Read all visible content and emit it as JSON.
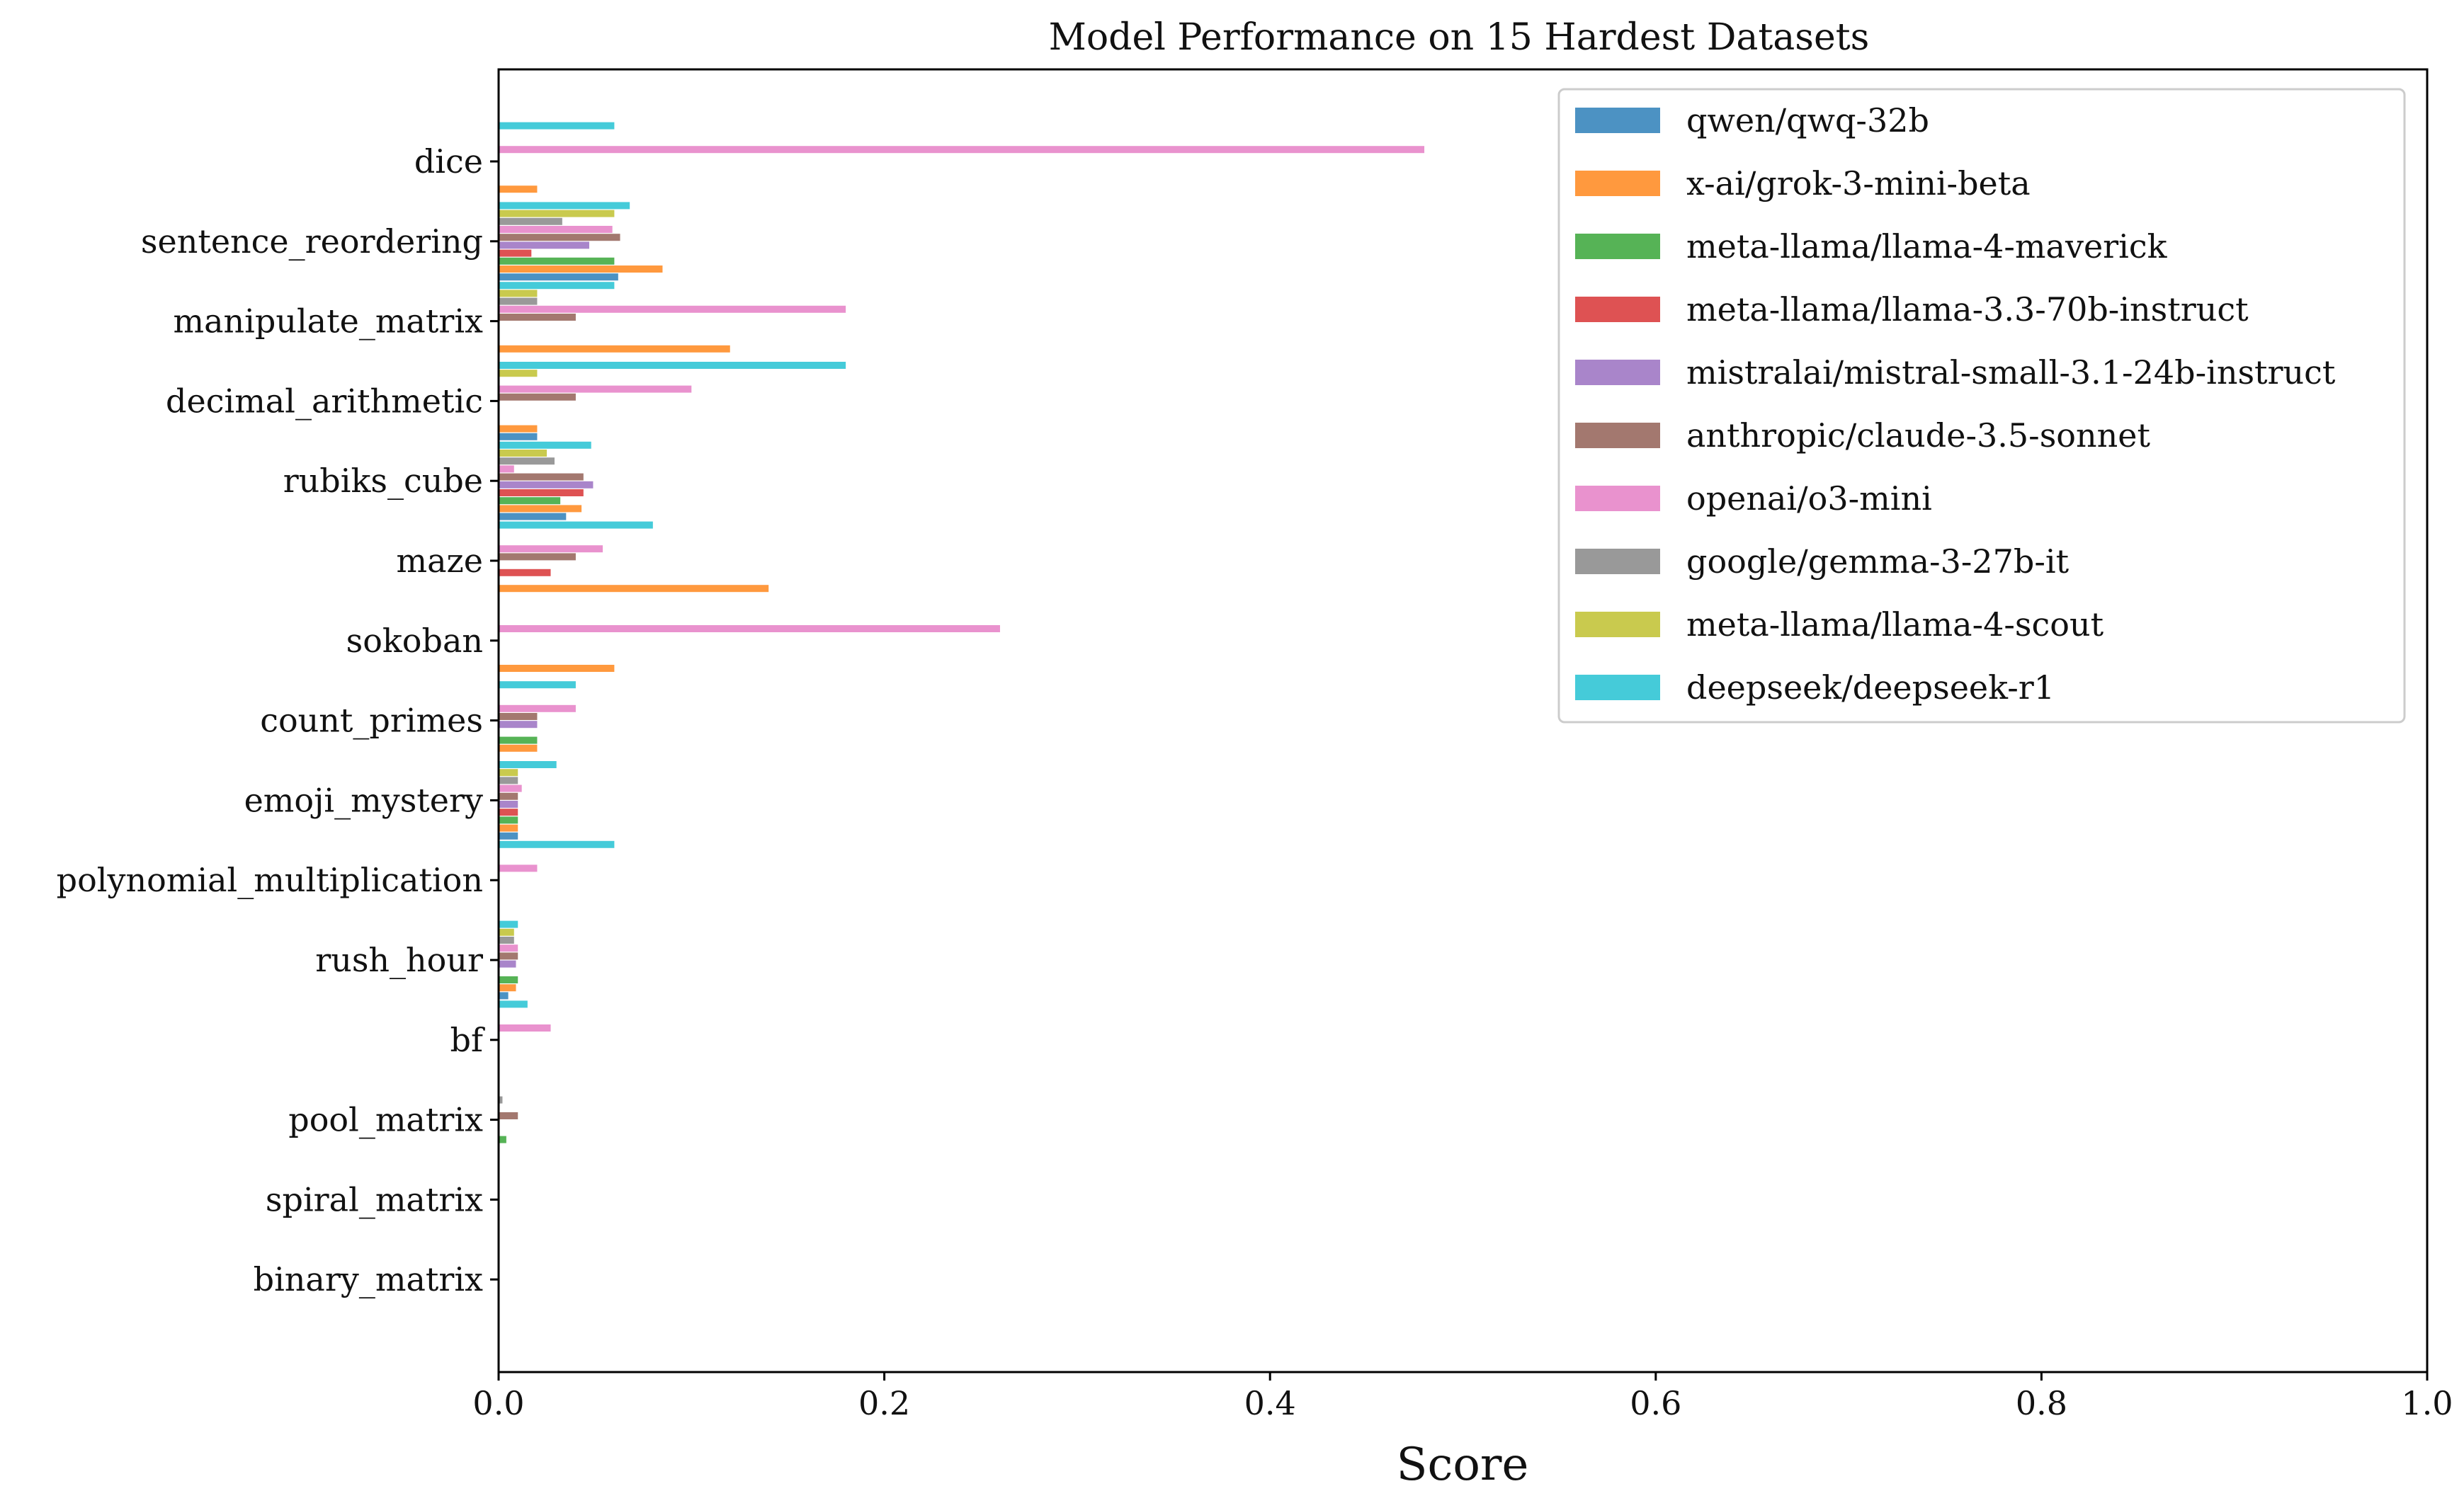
{
  "chart_data": {
    "type": "bar",
    "orientation": "horizontal",
    "title": "Model Performance on 15 Hardest Datasets",
    "xlabel": "Score",
    "ylabel": "",
    "xlim": [
      0,
      1.0
    ],
    "xticks": [
      "0.0",
      "0.2",
      "0.4",
      "0.6",
      "0.8",
      "1.0"
    ],
    "grid": false,
    "legend_position": "top-right",
    "categories": [
      "dice",
      "sentence_reordering",
      "manipulate_matrix",
      "decimal_arithmetic",
      "rubiks_cube",
      "maze",
      "sokoban",
      "count_primes",
      "emoji_mystery",
      "polynomial_multiplication",
      "rush_hour",
      "bf",
      "pool_matrix",
      "spiral_matrix",
      "binary_matrix"
    ],
    "series": [
      {
        "name": "qwen/qwq-32b",
        "color": "#1f77b4",
        "values": [
          0,
          0.062,
          0,
          0.02,
          0.035,
          0,
          0,
          0,
          0.01,
          0,
          0.005,
          0,
          0,
          0,
          0
        ]
      },
      {
        "name": "x-ai/grok-3-mini-beta",
        "color": "#ff7f0e",
        "values": [
          0.02,
          0.085,
          0.12,
          0.02,
          0.043,
          0.14,
          0.06,
          0.02,
          0.01,
          0,
          0.009,
          0,
          0,
          0,
          0
        ]
      },
      {
        "name": "meta-llama/llama-4-maverick",
        "color": "#2ca02c",
        "values": [
          0,
          0.06,
          0,
          0,
          0.032,
          0,
          0,
          0.02,
          0.01,
          0,
          0.01,
          0,
          0.004,
          0,
          0
        ]
      },
      {
        "name": "meta-llama/llama-3.3-70b-instruct",
        "color": "#d62728",
        "values": [
          0,
          0.017,
          0,
          0,
          0.044,
          0.027,
          0,
          0,
          0.01,
          0,
          0,
          0,
          0,
          0,
          0
        ]
      },
      {
        "name": "mistralai/mistral-small-3.1-24b-instruct",
        "color": "#9467bd",
        "values": [
          0,
          0.047,
          0,
          0,
          0.049,
          0,
          0,
          0.02,
          0.01,
          0,
          0.009,
          0,
          0,
          0,
          0
        ]
      },
      {
        "name": "anthropic/claude-3.5-sonnet",
        "color": "#8c564b",
        "values": [
          0,
          0.063,
          0.04,
          0.04,
          0.044,
          0.04,
          0,
          0.02,
          0.01,
          0,
          0.01,
          0,
          0.01,
          0,
          0
        ]
      },
      {
        "name": "openai/o3-mini",
        "color": "#e377c2",
        "values": [
          0.48,
          0.059,
          0.18,
          0.1,
          0.008,
          0.054,
          0.26,
          0.04,
          0.012,
          0.02,
          0.01,
          0.027,
          0,
          0,
          0
        ]
      },
      {
        "name": "google/gemma-3-27b-it",
        "color": "#7f7f7f",
        "values": [
          0,
          0.033,
          0.02,
          0,
          0.029,
          0,
          0,
          0,
          0.01,
          0,
          0.008,
          0,
          0.002,
          0,
          0
        ]
      },
      {
        "name": "meta-llama/llama-4-scout",
        "color": "#bcbd22",
        "values": [
          0,
          0.06,
          0.02,
          0.02,
          0.025,
          0,
          0,
          0,
          0.01,
          0,
          0.008,
          0,
          0,
          0,
          0
        ]
      },
      {
        "name": "deepseek/deepseek-r1",
        "color": "#17becf",
        "values": [
          0.06,
          0.068,
          0.06,
          0.18,
          0.048,
          0.08,
          0,
          0.04,
          0.03,
          0.06,
          0.01,
          0.015,
          0,
          0,
          0
        ]
      }
    ]
  }
}
